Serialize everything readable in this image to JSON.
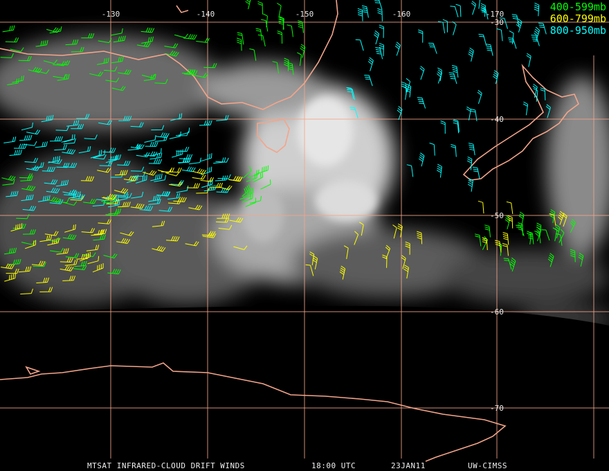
{
  "map": {
    "lon_labels": [
      "-130",
      "-140",
      "-150",
      "-160",
      "-170"
    ],
    "lat_labels": [
      "-30",
      "-40",
      "-50",
      "-60",
      "-70"
    ],
    "legend": [
      {
        "label": "400-599mb",
        "color": "#00ff00"
      },
      {
        "label": "600-799mb",
        "color": "#ffff00"
      },
      {
        "label": "800-950mb",
        "color": "#00ffff"
      }
    ],
    "footer": [
      "MTSAT INFRARED-CLOUD DRIFT WINDS",
      "18:00 UTC",
      "23JAN11",
      "UW-CIMSS"
    ]
  }
}
